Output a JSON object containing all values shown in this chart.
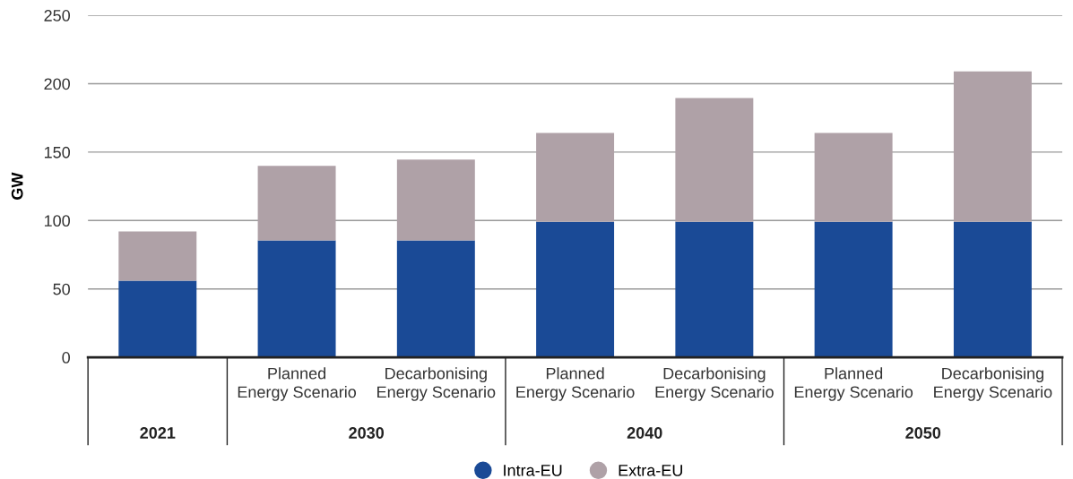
{
  "chart_data": {
    "type": "bar",
    "stacked": true,
    "ylabel": "GW",
    "categories": [
      null,
      "Planned\nEnergy Scenario",
      "Decarbonising\nEnergy Scenario",
      "Planned\nEnergy Scenario",
      "Decarbonising\nEnergy Scenario",
      "Planned\nEnergy Scenario",
      "Decarbonising\nEnergy Scenario"
    ],
    "series": [
      {
        "name": "Intra-EU",
        "color": "#1a4a96",
        "values": [
          56,
          85.5,
          85.5,
          99,
          99,
          99,
          99
        ]
      },
      {
        "name": "Extra-EU",
        "color": "#afa1a7",
        "values": [
          36,
          54.5,
          59,
          65,
          90.5,
          65,
          110
        ]
      }
    ],
    "annotations": [
      "2021",
      "2030",
      "2040",
      "2050"
    ],
    "ylim": [
      0,
      250
    ],
    "yticks": [
      0,
      50,
      100,
      150,
      200,
      250
    ],
    "grid": "y",
    "legend": "bottom"
  }
}
